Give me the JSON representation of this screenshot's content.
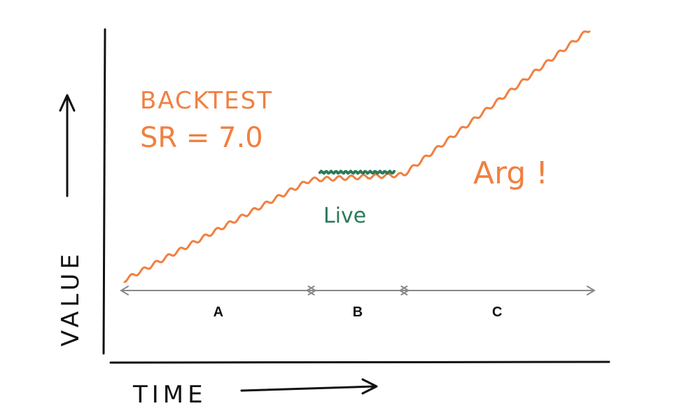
{
  "chart_data": {
    "type": "line",
    "xlabel": "TIME",
    "ylabel": "VALUE",
    "annotations": {
      "backtest": "BACKTEST",
      "sharpe": "SR = 7.0",
      "live": "Live",
      "reaction": "Arg !"
    },
    "segments": [
      {
        "label": "A",
        "x_start": 0,
        "x_end": 0.4
      },
      {
        "label": "B",
        "x_start": 0.4,
        "x_end": 0.6
      },
      {
        "label": "C",
        "x_start": 0.6,
        "x_end": 1.0
      }
    ],
    "series": [
      {
        "name": "",
        "color": "#f08040",
        "x": [
          0,
          0.4,
          0.6,
          1.0
        ],
        "y": [
          0.0,
          0.4,
          0.42,
          1.0
        ]
      },
      {
        "name": "",
        "color": "#2a7a5a",
        "x": [
          0.42,
          0.58
        ],
        "y": [
          0.43,
          0.43
        ]
      }
    ],
    "xlim": [
      0,
      1
    ],
    "ylim": [
      0,
      1
    ]
  },
  "colors": {
    "backtest": "#f08040",
    "live": "#2a7a5a",
    "axis": "#111111",
    "span_arrow": "#888888"
  }
}
